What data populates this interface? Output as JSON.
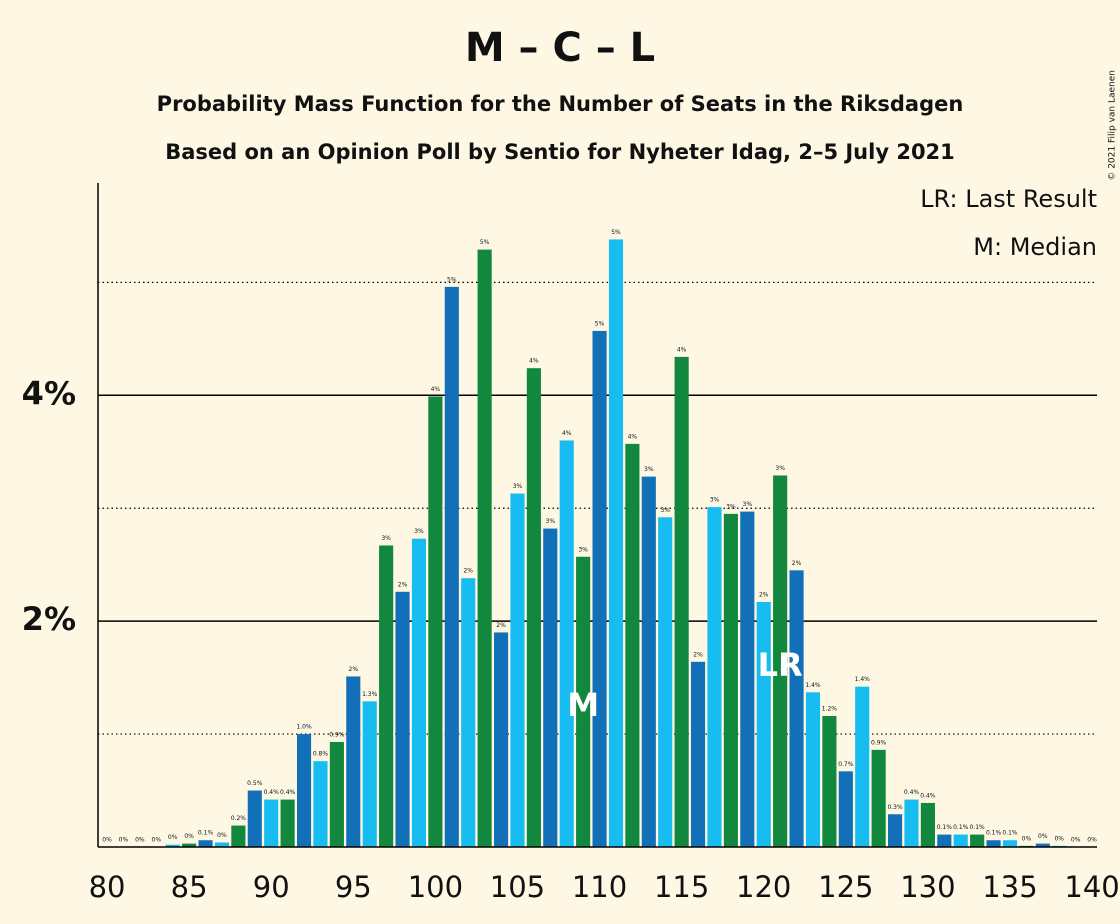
{
  "chart_data": {
    "type": "bar",
    "title": "M – C – L",
    "subtitle": "Probability Mass Function for the Number of Seats in the Riksdagen",
    "subtitle2": "Based on an Opinion Poll by Sentio for Nyheter Idag, 2–5 July 2021",
    "copyright": "© 2021 Filip van Laenen",
    "legend": [
      "LR: Last Result",
      "M: Median"
    ],
    "x": [
      80,
      81,
      82,
      83,
      84,
      85,
      86,
      87,
      88,
      89,
      90,
      91,
      92,
      93,
      94,
      95,
      96,
      97,
      98,
      99,
      100,
      101,
      102,
      103,
      104,
      105,
      106,
      107,
      108,
      109,
      110,
      111,
      112,
      113,
      114,
      115,
      116,
      117,
      118,
      119,
      120,
      121,
      122,
      123,
      124,
      125,
      126,
      127,
      128,
      129,
      130,
      131,
      132,
      133,
      134,
      135,
      136,
      137,
      138,
      139,
      140
    ],
    "values": [
      0,
      0,
      0,
      0,
      0.02,
      0.03,
      0.06,
      0.04,
      0.19,
      0.5,
      0.42,
      0.42,
      1.0,
      0.76,
      0.93,
      1.51,
      1.29,
      2.67,
      2.26,
      2.73,
      3.99,
      4.96,
      2.38,
      5.29,
      1.9,
      3.13,
      4.24,
      2.82,
      3.6,
      2.57,
      4.57,
      5.38,
      3.57,
      3.28,
      2.92,
      4.34,
      1.64,
      3.01,
      2.95,
      2.97,
      2.17,
      3.29,
      2.45,
      1.37,
      1.16,
      0.67,
      1.42,
      0.86,
      0.29,
      0.42,
      0.39,
      0.11,
      0.11,
      0.11,
      0.06,
      0.06,
      0.01,
      0.03,
      0.01,
      0,
      0
    ],
    "value_labels": [
      "0%",
      "0%",
      "0%",
      "0%",
      "0%",
      "0%",
      "0.1%",
      "0%",
      "0.2%",
      "0.5%",
      "0.4%",
      "0.4%",
      "1.0%",
      "0.8%",
      "0.9%",
      "2%",
      "1.3%",
      "3%",
      "2%",
      "3%",
      "4%",
      "5%",
      "2%",
      "5%",
      "2%",
      "3%",
      "4%",
      "3%",
      "4%",
      "3%",
      "5%",
      "5%",
      "4%",
      "3%",
      "3%",
      "4%",
      "2%",
      "3%",
      "3%",
      "3%",
      "2%",
      "3%",
      "2%",
      "1.4%",
      "1.2%",
      "0.7%",
      "1.4%",
      "0.9%",
      "0.3%",
      "0.4%",
      "0.4%",
      "0.1%",
      "0.1%",
      "0.1%",
      "0.1%",
      "0.1%",
      "0%",
      "0%",
      "0%",
      "0%",
      "0%"
    ],
    "colors": [
      "#1170b7",
      "#17bdf0",
      "#12873e"
    ],
    "xlim": [
      79.45,
      140.3
    ],
    "xticks": [
      80,
      85,
      90,
      95,
      100,
      105,
      110,
      115,
      120,
      125,
      130,
      135,
      140
    ],
    "ylim": [
      0,
      5.88
    ],
    "yticks": [
      {
        "value": 2,
        "label": "2%"
      },
      {
        "value": 4,
        "label": "4%"
      }
    ],
    "minor_yticks": [
      1,
      3,
      5
    ],
    "annotations": [
      {
        "x": 109,
        "label": "M"
      },
      {
        "x": 121,
        "label": "LR"
      }
    ]
  }
}
